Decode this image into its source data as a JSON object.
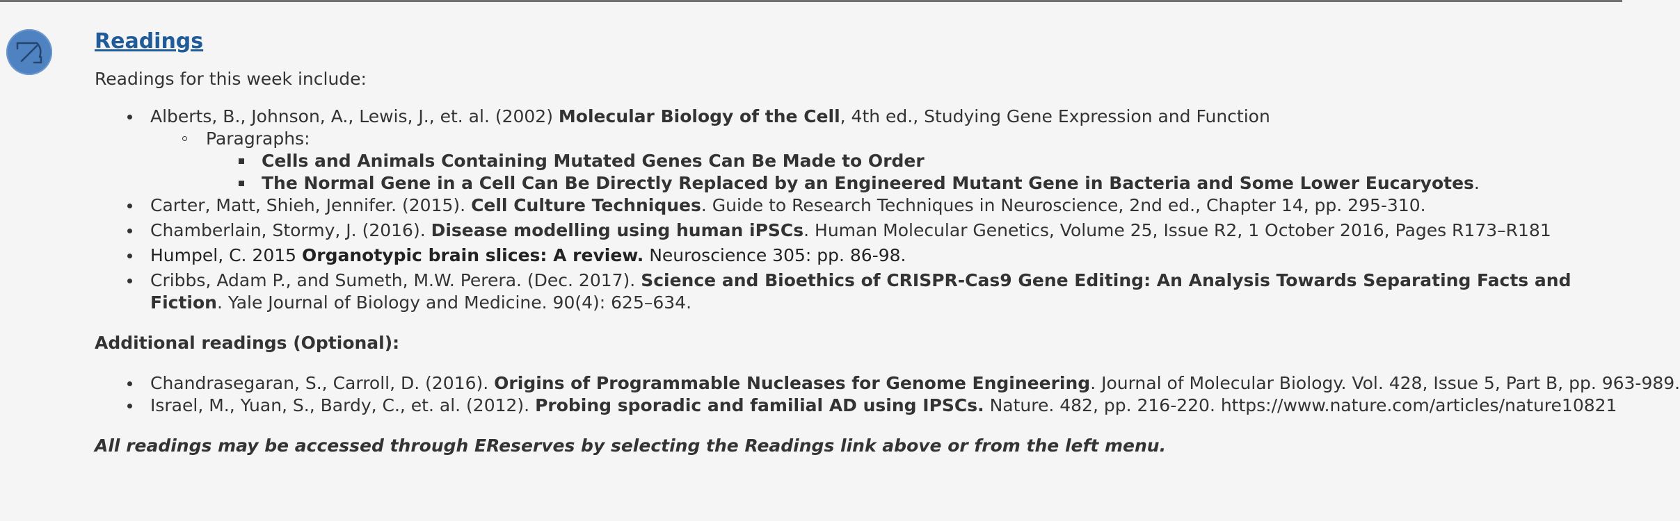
{
  "header": {
    "icon": "readings-icon",
    "title": "Readings"
  },
  "intro": "Readings for this week include:",
  "readings": [
    {
      "pre": "Alberts, B., Johnson, A., Lewis, J., et. al. (2002) ",
      "bold": "Molecular Biology of the Cell",
      "post": ", 4th ed., Studying Gene Expression and Function",
      "sub_label": "Paragraphs:",
      "paragraphs": [
        {
          "bold": "Cells and Animals Containing Mutated Genes Can Be Made to Order",
          "post": ""
        },
        {
          "bold": "The Normal Gene in a Cell Can Be Directly Replaced by an Engineered Mutant Gene in Bacteria and Some Lower Eucaryotes",
          "post": "."
        }
      ]
    },
    {
      "pre": "Carter, Matt, Shieh, Jennifer. (2015). ",
      "bold": "Cell Culture Techniques",
      "post": ". Guide to Research Techniques in Neuroscience, 2nd ed., Chapter 14, pp. 295-310."
    },
    {
      "pre": "Chamberlain, Stormy, J. (2016). ",
      "bold": "Disease modelling using human iPSCs",
      "post": ". Human Molecular Genetics, Volume 25, Issue R2, 1 October 2016, Pages R173–R181"
    },
    {
      "pre": "Humpel, C. 2015 ",
      "bold": "Organotypic brain slices: A review.",
      "post": " Neuroscience 305: pp. 86-98."
    },
    {
      "pre": "Cribbs, Adam P., and Sumeth, M.W. Perera. (Dec. 2017). ",
      "bold": "Science and Bioethics of CRISPR-Cas9 Gene Editing: An Analysis Towards Separating Facts and Fiction",
      "post": ". Yale Journal of Biology and Medicine. 90(4): 625–634."
    }
  ],
  "additional": {
    "heading": "Additional readings (Optional):",
    "items": [
      {
        "pre": "Chandrasegaran, S., Carroll, D. (2016). ",
        "bold": "Origins of Programmable Nucleases for Genome Engineering",
        "post": ". Journal of Molecular Biology. Vol. 428, Issue 5, Part B, pp. 963-989."
      },
      {
        "pre": "Israel, M., Yuan, S., Bardy, C., et. al. (2012). ",
        "bold": "Probing sporadic and familial AD using IPSCs.",
        "post": " Nature. 482, pp. 216-220. https://www.nature.com/articles/nature10821"
      }
    ]
  },
  "note": "All readings may be accessed through EReserves by selecting the Readings link above or from the left menu."
}
